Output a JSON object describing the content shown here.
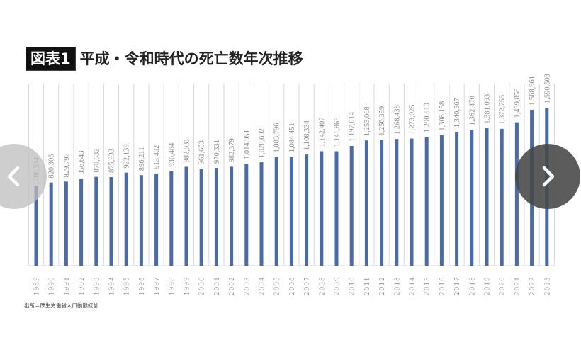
{
  "header": {
    "badge": "図表1",
    "title": "平成・令和時代の死亡数年次推移"
  },
  "footer": {
    "source": "出所＝厚生労働省人口動態統計"
  },
  "navigation": {
    "prev_icon": "chevron-left-icon",
    "next_icon": "chevron-right-icon"
  },
  "colors": {
    "bar": "#4a6aa8",
    "grid": "#d9d9d9",
    "label": "#8a8a8a"
  },
  "chart_data": {
    "type": "bar",
    "title": "平成・令和時代の死亡数年次推移",
    "xlabel": "",
    "ylabel": "",
    "grid": true,
    "legend": null,
    "data_labels": true,
    "categories": [
      "1989",
      "1990",
      "1991",
      "1992",
      "1993",
      "1994",
      "1995",
      "1996",
      "1997",
      "1998",
      "1999",
      "2000",
      "2001",
      "2002",
      "2003",
      "2004",
      "2005",
      "2006",
      "2007",
      "2008",
      "2009",
      "2010",
      "2011",
      "2012",
      "2013",
      "2014",
      "2015",
      "2016",
      "2017",
      "2018",
      "2019",
      "2020",
      "2021",
      "2022",
      "2023"
    ],
    "values": [
      788594,
      820305,
      829797,
      856643,
      878532,
      875933,
      922139,
      896211,
      913402,
      936484,
      982031,
      961653,
      970331,
      982379,
      1014951,
      1028602,
      1083796,
      1084451,
      1108334,
      1142407,
      1141865,
      1197014,
      1253068,
      1256359,
      1268438,
      1273025,
      1290510,
      1308158,
      1340567,
      1362470,
      1381093,
      1372755,
      1439856,
      1568961,
      1590503
    ],
    "labels": [
      "788,594",
      "820,305",
      "829,797",
      "856,643",
      "878,532",
      "875,933",
      "922,139",
      "896,211",
      "913,402",
      "936,484",
      "982,031",
      "961,653",
      "970,331",
      "982,379",
      "1,014,951",
      "1,028,602",
      "1,083,796",
      "1,084,451",
      "1,108,334",
      "1,142,407",
      "1,141,865",
      "1,197,014",
      "1,253,068",
      "1,256,359",
      "1,268,438",
      "1,273,025",
      "1,290,510",
      "1,308,158",
      "1,340,567",
      "1,362,470",
      "1,381,093",
      "1,372,755",
      "1,439,856",
      "1,568,961",
      "1,590,503"
    ],
    "source": "出所＝厚生労働省人口動態統計"
  }
}
